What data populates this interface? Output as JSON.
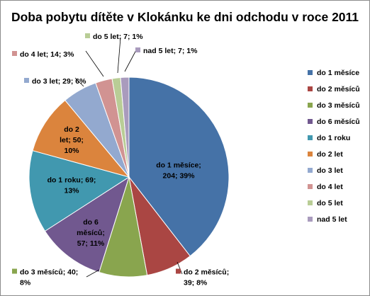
{
  "chart_data": {
    "type": "pie",
    "title": "Doba pobytu dítěte v Klokánku ke dni odchodu v roce 2011",
    "legend_position": "right",
    "slices": [
      {
        "name": "do 1 měsíce",
        "value": 204,
        "percent": 39,
        "color": "#4572A7",
        "label_lines": [
          "do 1 měsíce;",
          "204; 39%"
        ]
      },
      {
        "name": "do 2 měsíců",
        "value": 39,
        "percent": 8,
        "color": "#AA4643",
        "label_lines": [
          "do 2 měsíců;",
          "39; 8%"
        ]
      },
      {
        "name": "do 3 měsíců",
        "value": 40,
        "percent": 8,
        "color": "#89A54E",
        "label_lines": [
          "do 3 měsíců; 40;",
          "8%"
        ]
      },
      {
        "name": "do 6 měsíců",
        "value": 57,
        "percent": 11,
        "color": "#71588F",
        "label_lines": [
          "do 6",
          "měsíců;",
          "57; 11%"
        ]
      },
      {
        "name": "do 1 roku",
        "value": 69,
        "percent": 13,
        "color": "#4198AF",
        "label_lines": [
          "do 1 roku; 69;",
          "13%"
        ]
      },
      {
        "name": "do 2 let",
        "value": 50,
        "percent": 10,
        "color": "#DB843D",
        "label_lines": [
          "do 2",
          "let; 50;",
          "10%"
        ]
      },
      {
        "name": "do 3 let",
        "value": 29,
        "percent": 6,
        "color": "#93A9CF",
        "label_lines": [
          "do 3 let; 29; 6%"
        ]
      },
      {
        "name": "do 4 let",
        "value": 14,
        "percent": 3,
        "color": "#D19392",
        "label_lines": [
          "do 4 let; 14; 3%"
        ]
      },
      {
        "name": "do 5 let",
        "value": 7,
        "percent": 1,
        "color": "#B9CD96",
        "label_lines": [
          "do 5 let; 7; 1%"
        ]
      },
      {
        "name": "nad 5 let",
        "value": 7,
        "percent": 1,
        "color": "#A99BBD",
        "label_lines": [
          "nad 5 let; 7; 1%"
        ]
      }
    ]
  }
}
